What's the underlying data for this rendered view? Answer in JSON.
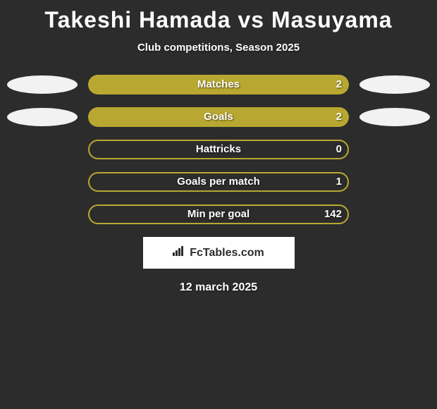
{
  "title": "Takeshi Hamada vs Masuyama",
  "subtitle": "Club competitions, Season 2025",
  "background_color": "#2c2c2c",
  "text_color": "#ffffff",
  "ellipse_color": "#f2f2f2",
  "bar_filled_color": "#b8a831",
  "bar_outline_color": "#b8a831",
  "rows": [
    {
      "label": "Matches",
      "value": "2",
      "fill_percent": 100,
      "filled": true,
      "left_ellipse": true,
      "right_ellipse": true
    },
    {
      "label": "Goals",
      "value": "2",
      "fill_percent": 100,
      "filled": true,
      "left_ellipse": true,
      "right_ellipse": true
    },
    {
      "label": "Hattricks",
      "value": "0",
      "fill_percent": 100,
      "filled": false,
      "left_ellipse": false,
      "right_ellipse": false
    },
    {
      "label": "Goals per match",
      "value": "1",
      "fill_percent": 100,
      "filled": false,
      "left_ellipse": false,
      "right_ellipse": false
    },
    {
      "label": "Min per goal",
      "value": "142",
      "fill_percent": 100,
      "filled": false,
      "left_ellipse": false,
      "right_ellipse": false
    }
  ],
  "attribution": "FcTables.com",
  "date": "12 march 2025"
}
